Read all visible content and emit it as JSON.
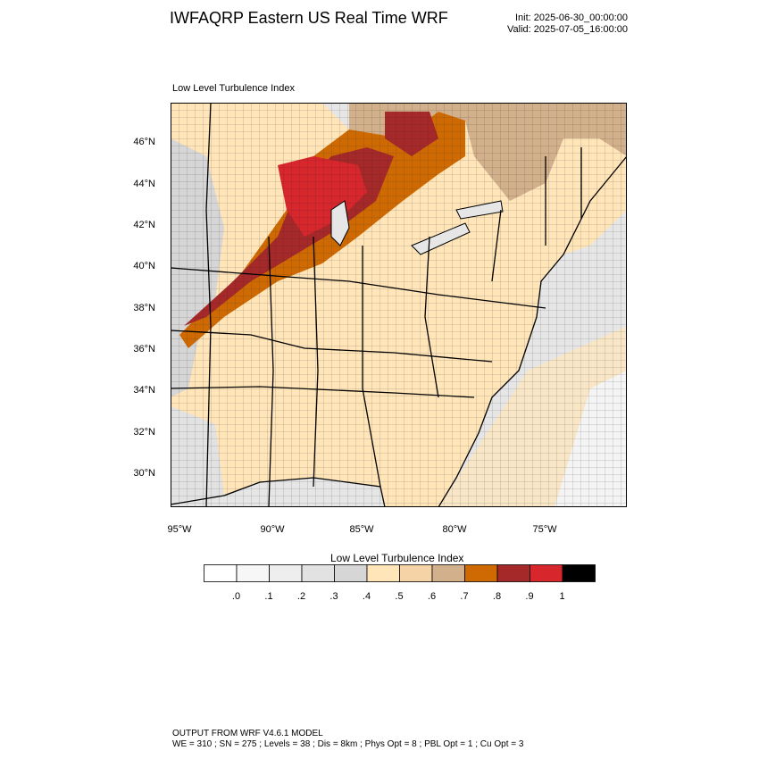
{
  "header": {
    "title": "IWFAQRP Eastern US Real Time WRF",
    "init": "Init: 2025-06-30_00:00:00",
    "valid": "Valid: 2025-07-05_16:00:00"
  },
  "map": {
    "title": "Low Level Turbulence Index",
    "lat_labels": [
      "46°N",
      "44°N",
      "42°N",
      "40°N",
      "38°N",
      "36°N",
      "34°N",
      "32°N",
      "30°N"
    ],
    "lon_labels": [
      "95°W",
      "90°W",
      "85°W",
      "80°W",
      "75°W"
    ],
    "extent": {
      "lon_min": -95.5,
      "lon_max": -70.5,
      "lat_min": 28.5,
      "lat_max": 47.8
    }
  },
  "colorbar": {
    "title": "Low Level Turbulence Index",
    "colors": [
      "#ffffff",
      "#f7f7f7",
      "#eeeeee",
      "#e2e2e2",
      "#d6d6d6",
      "#ffe5b8",
      "#f6d3a6",
      "#d1b08b",
      "#cf6a03",
      "#a6292a",
      "#d7262c",
      "#000000"
    ],
    "labels": [
      ".0",
      ".1",
      ".2",
      ".3",
      ".4",
      ".5",
      ".6",
      ".7",
      ".8",
      ".9",
      "1"
    ]
  },
  "footer": {
    "line1": "OUTPUT FROM WRF V4.6.1 MODEL",
    "line2": "WE = 310 ; SN = 275 ; Levels = 38 ; Dis = 8km ; Phys Opt = 8 ; PBL Opt = 1 ; Cu Opt = 3"
  }
}
